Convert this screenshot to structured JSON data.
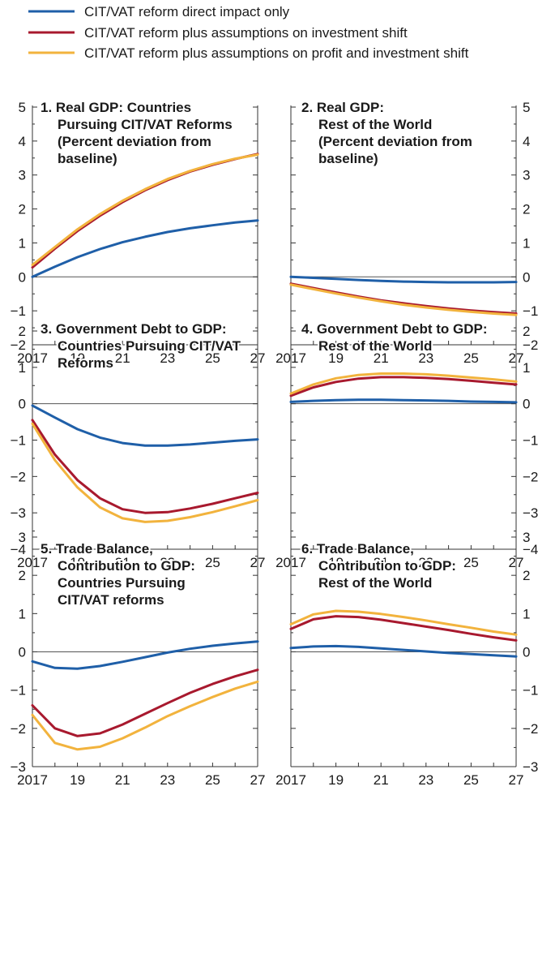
{
  "legend": [
    {
      "label": "CIT/VAT reform direct impact only",
      "color": "#1f5fa8"
    },
    {
      "label": "CIT/VAT reform plus assumptions on investment shift",
      "color": "#a8192e"
    },
    {
      "label": "CIT/VAT reform plus assumptions on profit and investment shift",
      "color": "#f2b33d"
    }
  ],
  "chart_data": [
    {
      "type": "line",
      "title": [
        "1. Real GDP: Countries",
        "Pursuing CIT/VAT Reforms",
        "(Percent deviation from",
        "baseline)"
      ],
      "x": [
        2017,
        2018,
        2019,
        2020,
        2021,
        2022,
        2023,
        2024,
        2025,
        2026,
        2027
      ],
      "x_tick_labels": [
        "2017",
        "19",
        "21",
        "23",
        "25",
        "27"
      ],
      "ylim": [
        -2,
        5
      ],
      "y_ticks": [
        "−2",
        "−1",
        "0",
        "1",
        "2",
        "3",
        "4",
        "5"
      ],
      "y_axis_side": "left",
      "series": [
        {
          "name": "CIT/VAT reform direct impact only",
          "values": [
            0.0,
            0.3,
            0.58,
            0.82,
            1.02,
            1.18,
            1.32,
            1.43,
            1.52,
            1.6,
            1.66
          ]
        },
        {
          "name": "CIT/VAT reform plus assumptions on investment shift",
          "values": [
            0.28,
            0.83,
            1.35,
            1.8,
            2.2,
            2.55,
            2.85,
            3.1,
            3.3,
            3.47,
            3.62
          ]
        },
        {
          "name": "CIT/VAT reform plus assumptions on profit and investment shift",
          "values": [
            0.35,
            0.88,
            1.4,
            1.85,
            2.24,
            2.58,
            2.88,
            3.12,
            3.32,
            3.48,
            3.6
          ]
        }
      ]
    },
    {
      "type": "line",
      "title": [
        "2. Real GDP:",
        "Rest of the World",
        "(Percent deviation from",
        "baseline)"
      ],
      "x": [
        2017,
        2018,
        2019,
        2020,
        2021,
        2022,
        2023,
        2024,
        2025,
        2026,
        2027
      ],
      "x_tick_labels": [
        "2017",
        "19",
        "21",
        "23",
        "25",
        "27"
      ],
      "ylim": [
        -2,
        5
      ],
      "y_ticks": [
        "−2",
        "−1",
        "0",
        "1",
        "2",
        "3",
        "4",
        "5"
      ],
      "y_axis_side": "right",
      "series": [
        {
          "name": "CIT/VAT reform direct impact only",
          "values": [
            0.0,
            -0.03,
            -0.06,
            -0.09,
            -0.12,
            -0.14,
            -0.15,
            -0.16,
            -0.16,
            -0.16,
            -0.15
          ]
        },
        {
          "name": "CIT/VAT reform plus assumptions on investment shift",
          "values": [
            -0.2,
            -0.33,
            -0.46,
            -0.58,
            -0.69,
            -0.78,
            -0.86,
            -0.93,
            -0.99,
            -1.04,
            -1.08
          ]
        },
        {
          "name": "CIT/VAT reform plus assumptions on profit and investment shift",
          "values": [
            -0.23,
            -0.36,
            -0.49,
            -0.61,
            -0.72,
            -0.82,
            -0.9,
            -0.97,
            -1.03,
            -1.08,
            -1.12
          ]
        }
      ]
    },
    {
      "type": "line",
      "title": [
        "3. Government Debt to GDP:",
        "Countries Pursuing CIT/VAT",
        "Reforms"
      ],
      "x": [
        2017,
        2018,
        2019,
        2020,
        2021,
        2022,
        2023,
        2024,
        2025,
        2026,
        2027
      ],
      "x_tick_labels": [
        "2017",
        "19",
        "21",
        "23",
        "25",
        "27"
      ],
      "ylim": [
        -4,
        2
      ],
      "y_ticks": [
        "−4",
        "−3",
        "−2",
        "−1",
        "0",
        "1",
        "2"
      ],
      "y_axis_side": "left",
      "series": [
        {
          "name": "CIT/VAT reform direct impact only",
          "values": [
            -0.05,
            -0.38,
            -0.7,
            -0.93,
            -1.08,
            -1.15,
            -1.15,
            -1.12,
            -1.07,
            -1.02,
            -0.98
          ]
        },
        {
          "name": "CIT/VAT reform plus assumptions on investment shift",
          "values": [
            -0.45,
            -1.4,
            -2.1,
            -2.6,
            -2.9,
            -3.0,
            -2.98,
            -2.88,
            -2.75,
            -2.6,
            -2.45
          ]
        },
        {
          "name": "CIT/VAT reform plus assumptions on profit and investment shift",
          "values": [
            -0.55,
            -1.55,
            -2.3,
            -2.85,
            -3.15,
            -3.25,
            -3.22,
            -3.12,
            -2.98,
            -2.82,
            -2.65
          ]
        }
      ]
    },
    {
      "type": "line",
      "title": [
        "4. Government Debt to GDP:",
        "Rest of the World"
      ],
      "x": [
        2017,
        2018,
        2019,
        2020,
        2021,
        2022,
        2023,
        2024,
        2025,
        2026,
        2027
      ],
      "x_tick_labels": [
        "2017",
        "19",
        "21",
        "23",
        "25",
        "27"
      ],
      "ylim": [
        -4,
        2
      ],
      "y_ticks": [
        "−4",
        "−3",
        "−2",
        "−1",
        "0",
        "1",
        "2"
      ],
      "y_axis_side": "right",
      "series": [
        {
          "name": "CIT/VAT reform direct impact only",
          "values": [
            0.05,
            0.08,
            0.1,
            0.11,
            0.11,
            0.1,
            0.09,
            0.08,
            0.06,
            0.05,
            0.04
          ]
        },
        {
          "name": "CIT/VAT reform plus assumptions on investment shift",
          "values": [
            0.22,
            0.45,
            0.6,
            0.69,
            0.73,
            0.73,
            0.71,
            0.68,
            0.63,
            0.58,
            0.53
          ]
        },
        {
          "name": "CIT/VAT reform plus assumptions on profit and investment shift",
          "values": [
            0.28,
            0.53,
            0.7,
            0.79,
            0.83,
            0.83,
            0.81,
            0.77,
            0.72,
            0.67,
            0.61
          ]
        }
      ]
    },
    {
      "type": "line",
      "title": [
        "5. Trade Balance,",
        "Contribution to GDP:",
        "Countries Pursuing",
        "CIT/VAT reforms"
      ],
      "x": [
        2017,
        2018,
        2019,
        2020,
        2021,
        2022,
        2023,
        2024,
        2025,
        2026,
        2027
      ],
      "x_tick_labels": [
        "2017",
        "19",
        "21",
        "23",
        "25",
        "27"
      ],
      "ylim": [
        -3,
        3
      ],
      "y_ticks": [
        "−3",
        "−2",
        "−1",
        "0",
        "1",
        "2",
        "3"
      ],
      "y_axis_side": "left",
      "series": [
        {
          "name": "CIT/VAT reform direct impact only",
          "values": [
            -0.25,
            -0.42,
            -0.44,
            -0.37,
            -0.26,
            -0.14,
            -0.02,
            0.08,
            0.16,
            0.22,
            0.27
          ]
        },
        {
          "name": "CIT/VAT reform plus assumptions on investment shift",
          "values": [
            -1.4,
            -2.0,
            -2.2,
            -2.13,
            -1.9,
            -1.62,
            -1.34,
            -1.07,
            -0.84,
            -0.64,
            -0.47
          ]
        },
        {
          "name": "CIT/VAT reform plus assumptions on profit and investment shift",
          "values": [
            -1.65,
            -2.38,
            -2.55,
            -2.48,
            -2.26,
            -1.98,
            -1.68,
            -1.42,
            -1.18,
            -0.96,
            -0.78
          ]
        }
      ]
    },
    {
      "type": "line",
      "title": [
        "6. Trade Balance,",
        "Contribution to GDP:",
        "Rest of the World"
      ],
      "x": [
        2017,
        2018,
        2019,
        2020,
        2021,
        2022,
        2023,
        2024,
        2025,
        2026,
        2027
      ],
      "x_tick_labels": [
        "2017",
        "19",
        "21",
        "23",
        "25",
        "27"
      ],
      "ylim": [
        -3,
        3
      ],
      "y_ticks": [
        "−3",
        "−2",
        "−1",
        "0",
        "1",
        "2",
        "3"
      ],
      "y_axis_side": "right",
      "series": [
        {
          "name": "CIT/VAT reform direct impact only",
          "values": [
            0.1,
            0.14,
            0.15,
            0.13,
            0.09,
            0.05,
            0.01,
            -0.03,
            -0.06,
            -0.09,
            -0.12
          ]
        },
        {
          "name": "CIT/VAT reform plus assumptions on investment shift",
          "values": [
            0.6,
            0.85,
            0.93,
            0.91,
            0.84,
            0.75,
            0.66,
            0.57,
            0.47,
            0.38,
            0.3
          ]
        },
        {
          "name": "CIT/VAT reform plus assumptions on profit and investment shift",
          "values": [
            0.72,
            0.98,
            1.07,
            1.05,
            0.99,
            0.91,
            0.82,
            0.72,
            0.63,
            0.53,
            0.45
          ]
        }
      ]
    }
  ]
}
